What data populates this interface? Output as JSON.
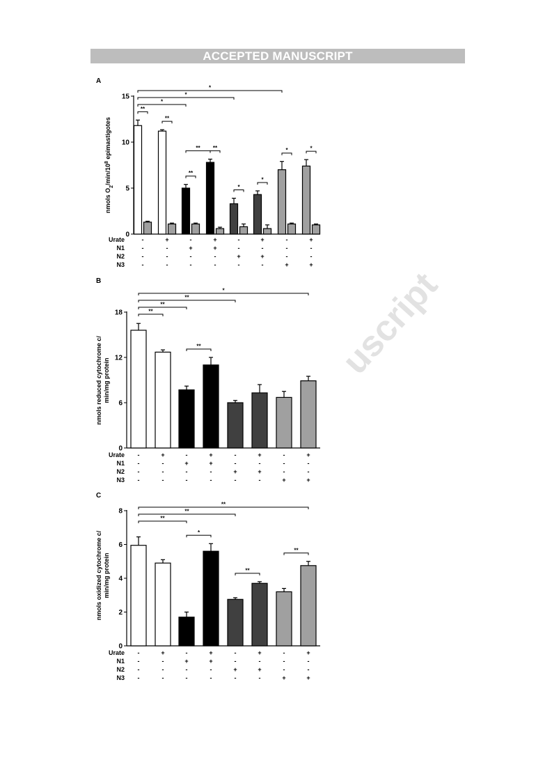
{
  "banner": "ACCEPTED MANUSCRIPT",
  "watermark": "uscript",
  "conditions": {
    "rows": [
      "Urate",
      "N1",
      "N2",
      "N3"
    ],
    "signs": [
      [
        "-",
        "+",
        "-",
        "+",
        "-",
        "+",
        "-",
        "+"
      ],
      [
        "-",
        "-",
        "+",
        "+",
        "-",
        "-",
        "-",
        "-"
      ],
      [
        "-",
        "-",
        "-",
        "-",
        "+",
        "+",
        "-",
        "-"
      ],
      [
        "-",
        "-",
        "-",
        "-",
        "-",
        "-",
        "+",
        "+"
      ]
    ]
  },
  "colors": {
    "white": "#ffffff",
    "black": "#000000",
    "dark": "#404040",
    "light": "#a0a0a0",
    "axis": "#000000"
  },
  "chart_data": [
    {
      "panel": "A",
      "type": "bar",
      "ylabel_main": "nmols O",
      "ylabel_sub": "2",
      "ylabel_mid": "/min/10",
      "ylabel_sup": "8",
      "ylabel_end": " epimastigotes",
      "ylim": [
        0,
        15
      ],
      "yticks": [
        "0",
        "5",
        "10",
        "15"
      ],
      "ytick_values": [
        0,
        5,
        10,
        15
      ],
      "groups": [
        {
          "color": "white",
          "values": [
            11.8,
            1.3
          ],
          "errors": [
            0.6,
            0.1
          ]
        },
        {
          "color": "white",
          "values": [
            11.2,
            1.1
          ],
          "errors": [
            0.15,
            0.1
          ]
        },
        {
          "color": "black",
          "values": [
            5.0,
            1.1
          ],
          "errors": [
            0.4,
            0.1
          ]
        },
        {
          "color": "black",
          "values": [
            7.8,
            0.6
          ],
          "errors": [
            0.35,
            0.15
          ]
        },
        {
          "color": "dark",
          "values": [
            3.3,
            0.8
          ],
          "errors": [
            0.6,
            0.3
          ]
        },
        {
          "color": "dark",
          "values": [
            4.3,
            0.6
          ],
          "errors": [
            0.4,
            0.4
          ]
        },
        {
          "color": "light",
          "values": [
            7.0,
            1.1
          ],
          "errors": [
            0.9,
            0.1
          ]
        },
        {
          "color": "light",
          "values": [
            7.4,
            1.0
          ],
          "errors": [
            0.7,
            0.1
          ]
        }
      ],
      "significance": [
        {
          "from": [
            0,
            0
          ],
          "to": [
            6,
            0
          ],
          "label": "*"
        },
        {
          "from": [
            0,
            0
          ],
          "to": [
            4,
            0
          ],
          "label": "*"
        },
        {
          "from": [
            0,
            0
          ],
          "to": [
            2,
            0
          ],
          "label": "*"
        },
        {
          "from": [
            0,
            0
          ],
          "to": [
            0,
            1
          ],
          "label": "**"
        },
        {
          "from": [
            1,
            0
          ],
          "to": [
            1,
            1
          ],
          "label": "**"
        },
        {
          "from": [
            2,
            0
          ],
          "to": [
            3,
            0
          ],
          "label": "**"
        },
        {
          "from": [
            3,
            0
          ],
          "to": [
            3,
            1
          ],
          "label": "**"
        },
        {
          "from": [
            2,
            0
          ],
          "to": [
            2,
            1
          ],
          "label": "**"
        },
        {
          "from": [
            4,
            0
          ],
          "to": [
            4,
            1
          ],
          "label": "*"
        },
        {
          "from": [
            5,
            0
          ],
          "to": [
            5,
            1
          ],
          "label": "*"
        },
        {
          "from": [
            6,
            0
          ],
          "to": [
            6,
            1
          ],
          "label": "*"
        },
        {
          "from": [
            7,
            0
          ],
          "to": [
            7,
            1
          ],
          "label": "*"
        }
      ]
    },
    {
      "panel": "B",
      "type": "bar",
      "ylabel_line1": "nmols reduced cytochrome c/",
      "ylabel_line2": "min/mg protein",
      "ylim": [
        0,
        18
      ],
      "yticks": [
        "0",
        "6",
        "12",
        "18"
      ],
      "ytick_values": [
        0,
        6,
        12,
        18
      ],
      "bars": [
        {
          "color": "white",
          "value": 15.6,
          "error": 0.9
        },
        {
          "color": "white",
          "value": 12.7,
          "error": 0.3
        },
        {
          "color": "black",
          "value": 7.7,
          "error": 0.5
        },
        {
          "color": "black",
          "value": 11.0,
          "error": 1.0
        },
        {
          "color": "dark",
          "value": 6.0,
          "error": 0.3
        },
        {
          "color": "dark",
          "value": 7.3,
          "error": 1.1
        },
        {
          "color": "light",
          "value": 6.7,
          "error": 0.8
        },
        {
          "color": "light",
          "value": 8.9,
          "error": 0.6
        }
      ],
      "significance": [
        {
          "from": 0,
          "to": 7,
          "label": "*"
        },
        {
          "from": 0,
          "to": 4,
          "label": "**"
        },
        {
          "from": 0,
          "to": 2,
          "label": "**"
        },
        {
          "from": 0,
          "to": 1,
          "label": "**"
        },
        {
          "from": 2,
          "to": 3,
          "label": "**"
        }
      ]
    },
    {
      "panel": "C",
      "type": "bar",
      "ylabel_line1": "nmols oxidized cytochrome c/",
      "ylabel_line2": "min/mg protein",
      "ylim": [
        0,
        8
      ],
      "yticks": [
        "0",
        "2",
        "4",
        "6",
        "8"
      ],
      "ytick_values": [
        0,
        2,
        4,
        6,
        8
      ],
      "bars": [
        {
          "color": "white",
          "value": 5.95,
          "error": 0.5
        },
        {
          "color": "white",
          "value": 4.9,
          "error": 0.2
        },
        {
          "color": "black",
          "value": 1.7,
          "error": 0.3
        },
        {
          "color": "black",
          "value": 5.6,
          "error": 0.45
        },
        {
          "color": "dark",
          "value": 2.75,
          "error": 0.1
        },
        {
          "color": "dark",
          "value": 3.7,
          "error": 0.1
        },
        {
          "color": "light",
          "value": 3.2,
          "error": 0.2
        },
        {
          "color": "light",
          "value": 4.75,
          "error": 0.25
        }
      ],
      "significance": [
        {
          "from": 0,
          "to": 7,
          "label": "**"
        },
        {
          "from": 0,
          "to": 4,
          "label": "**"
        },
        {
          "from": 0,
          "to": 2,
          "label": "**"
        },
        {
          "from": 2,
          "to": 3,
          "label": "*"
        },
        {
          "from": 4,
          "to": 5,
          "label": "**"
        },
        {
          "from": 6,
          "to": 7,
          "label": "**"
        }
      ]
    }
  ]
}
